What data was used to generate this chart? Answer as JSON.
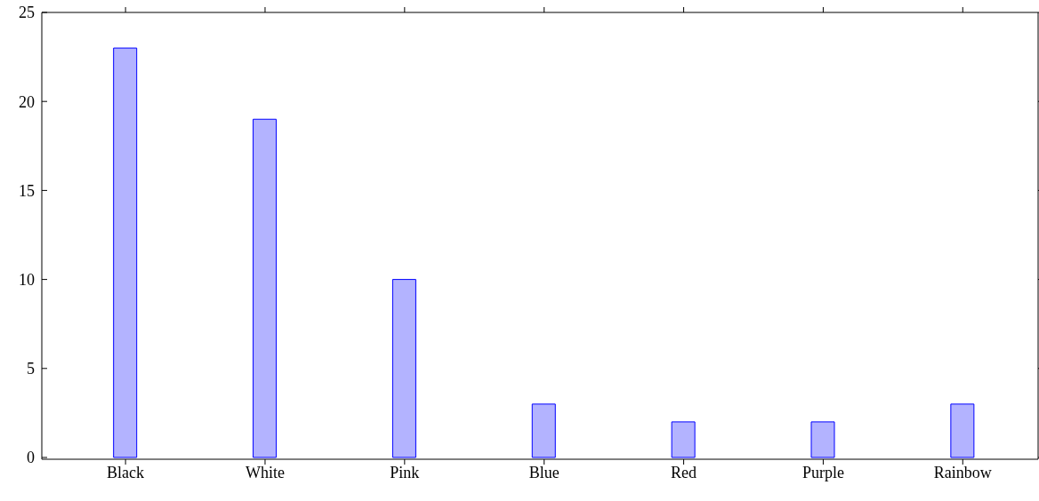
{
  "chart_data": {
    "type": "bar",
    "categories": [
      "Black",
      "White",
      "Pink",
      "Blue",
      "Red",
      "Purple",
      "Rainbow"
    ],
    "values": [
      23,
      19,
      10,
      3,
      2,
      2,
      3
    ],
    "color": "#b3b3ff",
    "ylim": [
      -0.1,
      25
    ],
    "yticks": [
      0,
      5,
      10,
      15,
      20,
      25
    ]
  }
}
